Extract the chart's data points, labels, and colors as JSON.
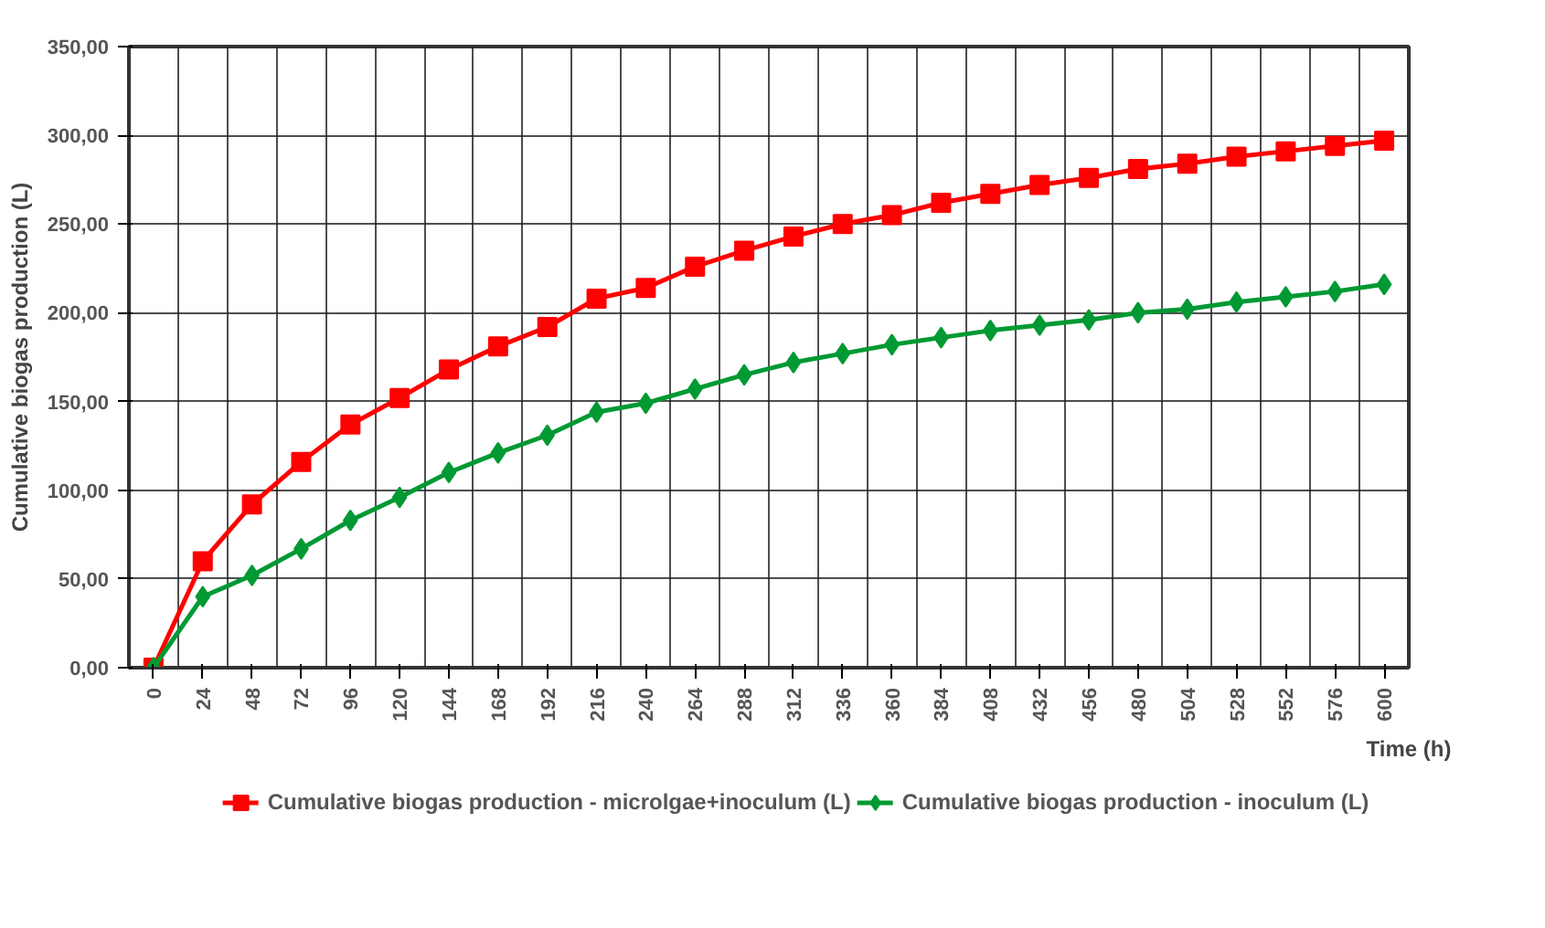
{
  "chart_data": {
    "type": "line",
    "xlabel": "Time (h)",
    "ylabel": "Cumulative biogas production (L)",
    "categories": [
      "0",
      "24",
      "48",
      "72",
      "96",
      "120",
      "144",
      "168",
      "192",
      "216",
      "240",
      "264",
      "288",
      "312",
      "336",
      "360",
      "384",
      "408",
      "432",
      "456",
      "480",
      "504",
      "528",
      "552",
      "576",
      "600"
    ],
    "series": [
      {
        "name": "Cumulative biogas production - microlgae+inoculum (L)",
        "color": "#ff0000",
        "marker": "square",
        "values": [
          0,
          60,
          92,
          116,
          137,
          152,
          168,
          181,
          192,
          208,
          214,
          226,
          235,
          243,
          250,
          255,
          262,
          267,
          272,
          276,
          281,
          284,
          288,
          291,
          294,
          297
        ]
      },
      {
        "name": "Cumulative biogas production - inoculum (L)",
        "color": "#009933",
        "marker": "diamond",
        "values": [
          0,
          40,
          52,
          67,
          83,
          96,
          110,
          121,
          131,
          144,
          149,
          157,
          165,
          172,
          177,
          182,
          186,
          190,
          193,
          196,
          200,
          202,
          206,
          209,
          212,
          216
        ]
      }
    ],
    "ylim": [
      0,
      350
    ],
    "yticks": [
      {
        "value": 0,
        "label": "0,00"
      },
      {
        "value": 50,
        "label": "50,00"
      },
      {
        "value": 100,
        "label": "100,00"
      },
      {
        "value": 150,
        "label": "150,00"
      },
      {
        "value": 200,
        "label": "200,00"
      },
      {
        "value": 250,
        "label": "250,00"
      },
      {
        "value": 300,
        "label": "300,00"
      },
      {
        "value": 350,
        "label": "350,00"
      }
    ],
    "grid": true,
    "legend": "bottom",
    "line_style": "solid"
  }
}
